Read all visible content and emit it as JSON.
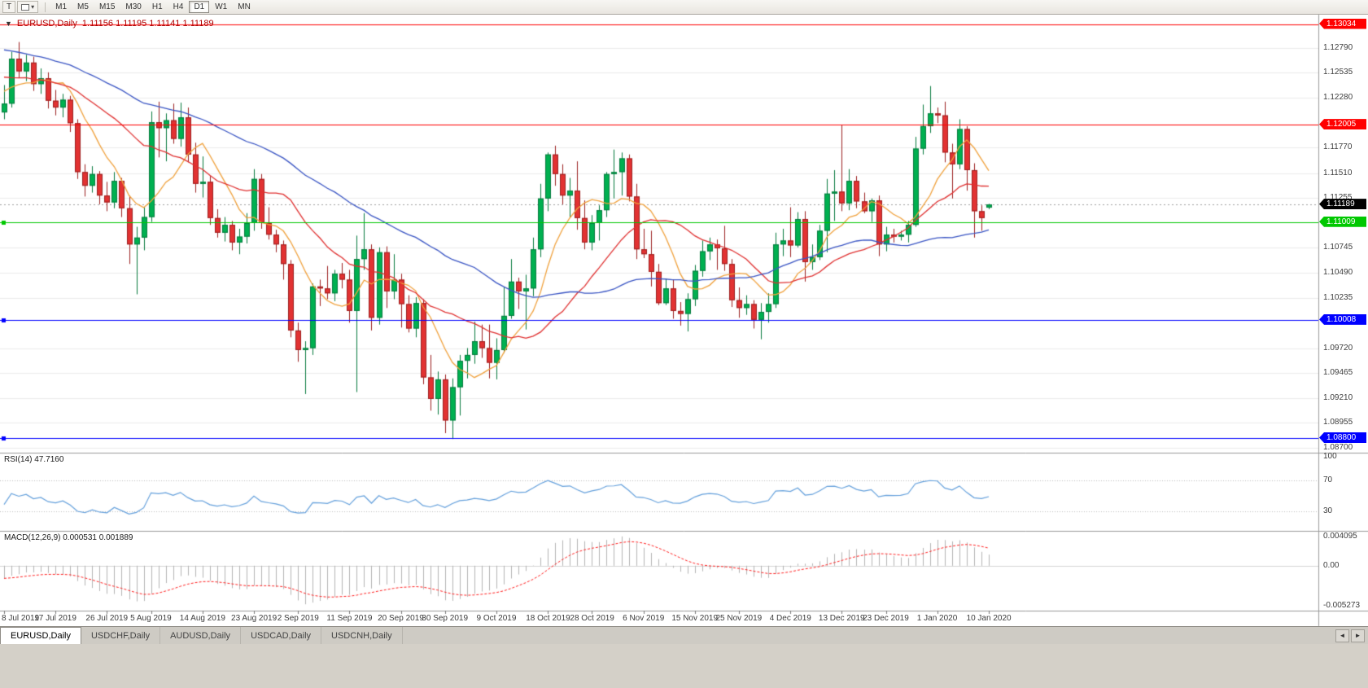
{
  "toolbar": {
    "text_tool": "T",
    "dropdown_caret": "▾",
    "timeframes": [
      {
        "label": "M1"
      },
      {
        "label": "M5"
      },
      {
        "label": "M15"
      },
      {
        "label": "M30"
      },
      {
        "label": "H1"
      },
      {
        "label": "H4"
      },
      {
        "label": "D1",
        "active": true
      },
      {
        "label": "W1"
      },
      {
        "label": "MN"
      }
    ]
  },
  "chart": {
    "collapse_arrow": "▼",
    "symbol_title": "EURUSD,Daily",
    "ohlc_text": "1.11156 1.11195 1.11141 1.11189"
  },
  "chart_data": {
    "type": "candlestick",
    "symbol": "EURUSD",
    "timeframe": "Daily",
    "last_bar": {
      "open": 1.11156,
      "high": 1.11195,
      "low": 1.11141,
      "close": 1.11189
    },
    "price_axis": {
      "min": 1.0865,
      "max": 1.1313,
      "grid_step": 0.00255
    },
    "colors": {
      "up": "#00b050",
      "up_border": "#067a3e",
      "down": "#e23232",
      "down_border": "#9c1f1f"
    },
    "current_price": {
      "value": 1.11189,
      "line_color": "#a0a0a0"
    },
    "hlines": [
      {
        "value": 1.13034,
        "color": "#ff0000",
        "selected": false
      },
      {
        "value": 1.12005,
        "color": "#ff0000",
        "selected": false
      },
      {
        "value": 1.11009,
        "color": "#00c800",
        "selected": true
      },
      {
        "value": 1.10008,
        "color": "#0000ff",
        "selected": true
      },
      {
        "value": 1.088,
        "color": "#0000ff",
        "selected": true
      }
    ],
    "moving_averages": [
      {
        "name": "fast",
        "period": 8,
        "color": "#f0a13c"
      },
      {
        "name": "medium",
        "period": 20,
        "color": "#e03030"
      },
      {
        "name": "slow",
        "period": 45,
        "color": "#3a55c4"
      }
    ],
    "x_labels": [
      {
        "text": "8 Jul 2019",
        "i": 0
      },
      {
        "text": "17 Jul 2019",
        "i": 7
      },
      {
        "text": "26 Jul 2019",
        "i": 14
      },
      {
        "text": "5 Aug 2019",
        "i": 20
      },
      {
        "text": "14 Aug 2019",
        "i": 27
      },
      {
        "text": "23 Aug 2019",
        "i": 34
      },
      {
        "text": "2 Sep 2019",
        "i": 40
      },
      {
        "text": "11 Sep 2019",
        "i": 47
      },
      {
        "text": "20 Sep 2019",
        "i": 54
      },
      {
        "text": "30 Sep 2019",
        "i": 60
      },
      {
        "text": "9 Oct 2019",
        "i": 67
      },
      {
        "text": "18 Oct 2019",
        "i": 74
      },
      {
        "text": "28 Oct 2019",
        "i": 80
      },
      {
        "text": "6 Nov 2019",
        "i": 87
      },
      {
        "text": "15 Nov 2019",
        "i": 94
      },
      {
        "text": "25 Nov 2019",
        "i": 100
      },
      {
        "text": "4 Dec 2019",
        "i": 107
      },
      {
        "text": "13 Dec 2019",
        "i": 114
      },
      {
        "text": "23 Dec 2019",
        "i": 120
      },
      {
        "text": "1 Jan 2020",
        "i": 127
      },
      {
        "text": "10 Jan 2020",
        "i": 134
      }
    ],
    "candles": [
      [
        1.1213,
        1.1241,
        1.1206,
        1.1222
      ],
      [
        1.1222,
        1.1275,
        1.1218,
        1.1268
      ],
      [
        1.1268,
        1.1285,
        1.1248,
        1.1255
      ],
      [
        1.1255,
        1.1272,
        1.1245,
        1.1264
      ],
      [
        1.1264,
        1.127,
        1.1235,
        1.1242
      ],
      [
        1.1242,
        1.1258,
        1.1232,
        1.1248
      ],
      [
        1.1248,
        1.1254,
        1.1217,
        1.1225
      ],
      [
        1.1225,
        1.1236,
        1.121,
        1.1218
      ],
      [
        1.1218,
        1.1232,
        1.1208,
        1.1226
      ],
      [
        1.1226,
        1.123,
        1.1193,
        1.1202
      ],
      [
        1.1202,
        1.1206,
        1.1145,
        1.1152
      ],
      [
        1.1152,
        1.116,
        1.1127,
        1.1138
      ],
      [
        1.1138,
        1.1158,
        1.1131,
        1.115
      ],
      [
        1.115,
        1.1153,
        1.1119,
        1.1128
      ],
      [
        1.1128,
        1.1142,
        1.1112,
        1.1121
      ],
      [
        1.1121,
        1.1152,
        1.1115,
        1.1143
      ],
      [
        1.1143,
        1.1146,
        1.1106,
        1.1115
      ],
      [
        1.1115,
        1.1128,
        1.1058,
        1.1078
      ],
      [
        1.1078,
        1.1096,
        1.1027,
        1.1085
      ],
      [
        1.1085,
        1.1116,
        1.1072,
        1.1106
      ],
      [
        1.1106,
        1.1214,
        1.1101,
        1.1203
      ],
      [
        1.1203,
        1.1224,
        1.1167,
        1.1197
      ],
      [
        1.1197,
        1.1212,
        1.1163,
        1.1205
      ],
      [
        1.1205,
        1.1222,
        1.1181,
        1.1186
      ],
      [
        1.1186,
        1.1223,
        1.1178,
        1.1208
      ],
      [
        1.1208,
        1.1218,
        1.1162,
        1.117
      ],
      [
        1.117,
        1.1182,
        1.1131,
        1.114
      ],
      [
        1.114,
        1.1168,
        1.1126,
        1.1142
      ],
      [
        1.1142,
        1.1148,
        1.1098,
        1.1105
      ],
      [
        1.1105,
        1.1114,
        1.1085,
        1.109
      ],
      [
        1.109,
        1.1106,
        1.1081,
        1.1098
      ],
      [
        1.1098,
        1.1102,
        1.1072,
        1.108
      ],
      [
        1.108,
        1.1094,
        1.1068,
        1.1086
      ],
      [
        1.1086,
        1.111,
        1.1079,
        1.11
      ],
      [
        1.11,
        1.1155,
        1.1092,
        1.1145
      ],
      [
        1.1145,
        1.115,
        1.1094,
        1.11
      ],
      [
        1.11,
        1.1116,
        1.1083,
        1.1088
      ],
      [
        1.1088,
        1.1093,
        1.107,
        1.1078
      ],
      [
        1.1078,
        1.1082,
        1.1042,
        1.1058
      ],
      [
        1.1058,
        1.1062,
        1.0983,
        1.099
      ],
      [
        1.099,
        1.0998,
        1.0958,
        1.097
      ],
      [
        1.097,
        1.0979,
        1.0925,
        1.0972
      ],
      [
        1.0972,
        1.1038,
        1.0965,
        1.1035
      ],
      [
        1.1035,
        1.1042,
        1.1015,
        1.1033
      ],
      [
        1.1033,
        1.1056,
        1.1022,
        1.1028
      ],
      [
        1.1028,
        1.1052,
        1.102,
        1.1048
      ],
      [
        1.1048,
        1.1059,
        1.1033,
        1.1042
      ],
      [
        1.1042,
        1.1052,
        1.0998,
        1.101
      ],
      [
        1.101,
        1.1087,
        1.0927,
        1.1063
      ],
      [
        1.1063,
        1.111,
        1.1052,
        1.1073
      ],
      [
        1.1073,
        1.1078,
        1.099,
        1.1003
      ],
      [
        1.1003,
        1.1075,
        1.0996,
        1.107
      ],
      [
        1.107,
        1.1076,
        1.1013,
        1.103
      ],
      [
        1.103,
        1.1068,
        1.1022,
        1.1042
      ],
      [
        1.1042,
        1.1048,
        1.0993,
        1.1017
      ],
      [
        1.1017,
        1.1026,
        1.0988,
        1.0992
      ],
      [
        1.0992,
        1.1024,
        1.0983,
        1.1018
      ],
      [
        1.1018,
        1.1022,
        1.0935,
        1.0942
      ],
      [
        1.0942,
        1.0965,
        1.0908,
        1.092
      ],
      [
        1.092,
        1.0948,
        1.0904,
        1.094
      ],
      [
        1.094,
        1.0945,
        1.0885,
        1.0898
      ],
      [
        1.0898,
        1.0941,
        1.0879,
        1.0932
      ],
      [
        1.0932,
        1.0965,
        1.0903,
        1.0959
      ],
      [
        1.0959,
        1.0972,
        1.0941,
        1.0965
      ],
      [
        1.0965,
        1.0999,
        1.0956,
        1.0979
      ],
      [
        1.0979,
        1.0996,
        1.0962,
        1.0972
      ],
      [
        1.0972,
        1.0996,
        1.0941,
        1.0957
      ],
      [
        1.0957,
        1.0982,
        1.094,
        1.097
      ],
      [
        1.097,
        1.1034,
        1.0967,
        1.1005
      ],
      [
        1.1005,
        1.1063,
        1.1002,
        1.104
      ],
      [
        1.104,
        1.1044,
        1.1012,
        1.103
      ],
      [
        1.103,
        1.1047,
        1.0991,
        1.1033
      ],
      [
        1.1033,
        1.1085,
        1.1025,
        1.1073
      ],
      [
        1.1073,
        1.114,
        1.1065,
        1.1125
      ],
      [
        1.1125,
        1.1172,
        1.1112,
        1.117
      ],
      [
        1.117,
        1.1179,
        1.1138,
        1.115
      ],
      [
        1.115,
        1.116,
        1.1119,
        1.1128
      ],
      [
        1.1128,
        1.1146,
        1.1105,
        1.1133
      ],
      [
        1.1133,
        1.1163,
        1.1093,
        1.1105
      ],
      [
        1.1105,
        1.1123,
        1.1073,
        1.108
      ],
      [
        1.108,
        1.1108,
        1.1072,
        1.11
      ],
      [
        1.11,
        1.1118,
        1.1082,
        1.1113
      ],
      [
        1.1113,
        1.1152,
        1.1106,
        1.115
      ],
      [
        1.115,
        1.1175,
        1.1125,
        1.1152
      ],
      [
        1.1152,
        1.1172,
        1.1128,
        1.1166
      ],
      [
        1.1166,
        1.117,
        1.1122,
        1.1127
      ],
      [
        1.1127,
        1.114,
        1.1063,
        1.1073
      ],
      [
        1.1073,
        1.1094,
        1.1064,
        1.1068
      ],
      [
        1.1068,
        1.1092,
        1.1035,
        1.105
      ],
      [
        1.105,
        1.1058,
        1.1016,
        1.1018
      ],
      [
        1.1018,
        1.1043,
        1.1016,
        1.1033
      ],
      [
        1.1033,
        1.1042,
        1.1002,
        1.101
      ],
      [
        1.101,
        1.1019,
        1.0995,
        1.1007
      ],
      [
        1.1007,
        1.1028,
        1.0989,
        1.1022
      ],
      [
        1.1022,
        1.1057,
        1.1015,
        1.1051
      ],
      [
        1.1051,
        1.1082,
        1.1045,
        1.1071
      ],
      [
        1.1071,
        1.1085,
        1.1062,
        1.1078
      ],
      [
        1.1078,
        1.1083,
        1.1052,
        1.1074
      ],
      [
        1.1074,
        1.1097,
        1.1051,
        1.1058
      ],
      [
        1.1058,
        1.1063,
        1.1014,
        1.1021
      ],
      [
        1.1021,
        1.1034,
        1.1003,
        1.1013
      ],
      [
        1.1013,
        1.1026,
        1.1006,
        1.1017
      ],
      [
        1.1017,
        1.1021,
        1.0992,
        1.1001
      ],
      [
        1.1001,
        1.1018,
        1.0981,
        1.1009
      ],
      [
        1.1009,
        1.1028,
        1.0998,
        1.1017
      ],
      [
        1.1017,
        1.109,
        1.1013,
        1.1078
      ],
      [
        1.1078,
        1.1094,
        1.1066,
        1.1082
      ],
      [
        1.1082,
        1.1116,
        1.1065,
        1.1077
      ],
      [
        1.1077,
        1.1111,
        1.1075,
        1.1104
      ],
      [
        1.1104,
        1.1112,
        1.104,
        1.106
      ],
      [
        1.106,
        1.1078,
        1.1052,
        1.1065
      ],
      [
        1.1065,
        1.1098,
        1.1062,
        1.1092
      ],
      [
        1.1092,
        1.1145,
        1.107,
        1.113
      ],
      [
        1.113,
        1.1154,
        1.1102,
        1.1132
      ],
      [
        1.1132,
        1.12,
        1.1112,
        1.112
      ],
      [
        1.112,
        1.1155,
        1.1113,
        1.1143
      ],
      [
        1.1143,
        1.1148,
        1.1115,
        1.1122
      ],
      [
        1.1122,
        1.1131,
        1.111,
        1.1112
      ],
      [
        1.1112,
        1.1125,
        1.1101,
        1.1123
      ],
      [
        1.1123,
        1.1128,
        1.1066,
        1.1078
      ],
      [
        1.1078,
        1.1096,
        1.1071,
        1.1088
      ],
      [
        1.1088,
        1.1094,
        1.108,
        1.1086
      ],
      [
        1.1086,
        1.1092,
        1.1082,
        1.1088
      ],
      [
        1.1088,
        1.1102,
        1.108,
        1.1098
      ],
      [
        1.1098,
        1.1188,
        1.1096,
        1.1176
      ],
      [
        1.1176,
        1.1221,
        1.117,
        1.1199
      ],
      [
        1.1199,
        1.124,
        1.1192,
        1.1212
      ],
      [
        1.1212,
        1.1218,
        1.1202,
        1.121
      ],
      [
        1.121,
        1.1224,
        1.1162,
        1.1172
      ],
      [
        1.1172,
        1.1181,
        1.1125,
        1.116
      ],
      [
        1.116,
        1.1206,
        1.1155,
        1.1196
      ],
      [
        1.1196,
        1.1199,
        1.1133,
        1.1154
      ],
      [
        1.1154,
        1.1161,
        1.1085,
        1.1112
      ],
      [
        1.1112,
        1.1118,
        1.1092,
        1.1105
      ],
      [
        1.11156,
        1.11195,
        1.11141,
        1.11189
      ]
    ]
  },
  "price_scale": {
    "ticks": [
      {
        "text": "1.12790",
        "value": 1.1279
      },
      {
        "text": "1.12535",
        "value": 1.12535
      },
      {
        "text": "1.12280",
        "value": 1.1228
      },
      {
        "text": "1.11770",
        "value": 1.1177
      },
      {
        "text": "1.11510",
        "value": 1.1151
      },
      {
        "text": "1.11255",
        "value": 1.11255
      },
      {
        "text": "1.10745",
        "value": 1.10745
      },
      {
        "text": "1.10490",
        "value": 1.1049
      },
      {
        "text": "1.10235",
        "value": 1.10235
      },
      {
        "text": "1.09720",
        "value": 1.0972
      },
      {
        "text": "1.09465",
        "value": 1.09465
      },
      {
        "text": "1.09210",
        "value": 1.0921
      },
      {
        "text": "1.08955",
        "value": 1.08955
      },
      {
        "text": "1.08700",
        "value": 1.087
      }
    ],
    "tags": [
      {
        "text": "1.13034",
        "value": 1.13034,
        "color": "#ff0000",
        "interactable": true
      },
      {
        "text": "1.12005",
        "value": 1.12005,
        "color": "#ff0000",
        "interactable": true
      },
      {
        "text": "1.11189",
        "value": 1.11189,
        "color": "#000000",
        "interactable": false
      },
      {
        "text": "1.11009",
        "value": 1.11009,
        "color": "#00c800",
        "interactable": true
      },
      {
        "text": "1.10008",
        "value": 1.10008,
        "color": "#0000ff",
        "interactable": true
      },
      {
        "text": "1.08800",
        "value": 1.088,
        "color": "#0000ff",
        "interactable": true
      }
    ]
  },
  "indicators": {
    "rsi": {
      "label": "RSI(14) 47.7160",
      "period": 14,
      "value": 47.716,
      "color": "#64a0dc",
      "levels": [
        70,
        30
      ],
      "scale_labels": [
        {
          "text": "100",
          "value": 100
        },
        {
          "text": "70",
          "value": 70
        },
        {
          "text": "30",
          "value": 30
        }
      ]
    },
    "macd": {
      "label": "MACD(12,26,9) 0.000531 0.001889",
      "macd_value": 0.000531,
      "signal_value": 0.001889,
      "histogram_color": "#b4b4b4",
      "signal_color": "#ff2020",
      "range": {
        "min": -0.005273,
        "max": 0.004095
      },
      "scale_labels": [
        {
          "text": "0.004095",
          "value": 0.004095
        },
        {
          "text": "0.00",
          "value": 0
        },
        {
          "text": "-0.005273",
          "value": -0.005273
        }
      ]
    }
  },
  "tabs": {
    "scroll_left": "◄",
    "scroll_right": "►",
    "items": [
      {
        "label": "EURUSD,Daily",
        "active": true
      },
      {
        "label": "USDCHF,Daily"
      },
      {
        "label": "AUDUSD,Daily"
      },
      {
        "label": "USDCAD,Daily"
      },
      {
        "label": "USDCNH,Daily"
      }
    ]
  }
}
